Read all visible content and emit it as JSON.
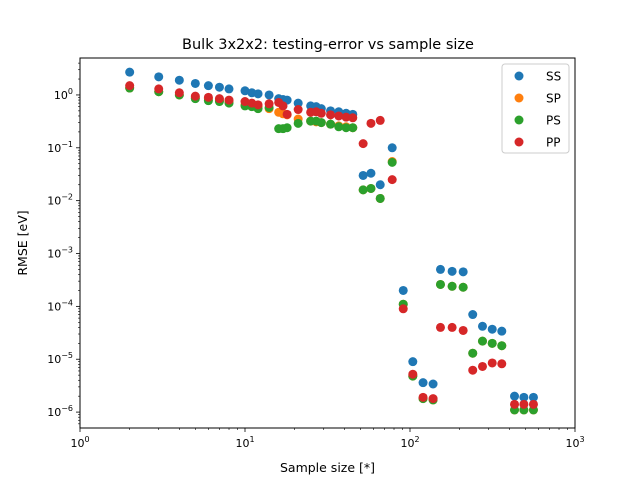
{
  "chart_data": {
    "type": "scatter",
    "title": "Bulk 3x2x2: testing-error vs sample size",
    "xlabel": "Sample size [*]",
    "ylabel": "RMSE [eV]",
    "xscale": "log",
    "yscale": "log",
    "xlim": [
      1,
      1000
    ],
    "ylim": [
      5e-07,
      5
    ],
    "grid": false,
    "legend_position": "top-right",
    "x_ticks": [
      {
        "value": 1,
        "base": "10",
        "exp": "0"
      },
      {
        "value": 10,
        "base": "10",
        "exp": "1"
      },
      {
        "value": 100,
        "base": "10",
        "exp": "2"
      },
      {
        "value": 1000,
        "base": "10",
        "exp": "3"
      }
    ],
    "y_ticks": [
      {
        "value": 1e-06,
        "base": "10",
        "exp": "−6"
      },
      {
        "value": 1e-05,
        "base": "10",
        "exp": "−5"
      },
      {
        "value": 0.0001,
        "base": "10",
        "exp": "−4"
      },
      {
        "value": 0.001,
        "base": "10",
        "exp": "−3"
      },
      {
        "value": 0.01,
        "base": "10",
        "exp": "−2"
      },
      {
        "value": 0.1,
        "base": "10",
        "exp": "−1"
      },
      {
        "value": 1,
        "base": "10",
        "exp": "0"
      }
    ],
    "x": [
      2,
      3,
      4,
      5,
      6,
      7,
      8,
      10,
      11,
      12,
      14,
      16,
      17,
      18,
      21,
      25,
      27,
      29,
      33,
      37,
      41,
      45,
      52,
      58,
      66,
      78,
      91,
      104,
      120,
      138,
      153,
      180,
      210,
      240,
      275,
      315,
      360,
      430,
      490,
      560
    ],
    "series": [
      {
        "name": "SS",
        "color": "#1f77b4",
        "values": [
          2.7,
          2.2,
          1.9,
          1.65,
          1.5,
          1.4,
          1.3,
          1.2,
          1.1,
          1.05,
          1.0,
          0.85,
          0.82,
          0.8,
          0.7,
          0.62,
          0.6,
          0.55,
          0.5,
          0.48,
          0.45,
          0.43,
          0.03,
          0.033,
          0.02,
          0.1,
          0.0002,
          9e-06,
          3.6e-06,
          3.4e-06,
          0.0005,
          0.00046,
          0.00045,
          7e-05,
          4.2e-05,
          3.7e-05,
          3.4e-05,
          2e-06,
          1.9e-06,
          1.9e-06
        ]
      },
      {
        "name": "SP",
        "color": "#ff7f0e",
        "values": [
          1.35,
          1.15,
          1.0,
          0.9,
          0.85,
          0.8,
          0.75,
          0.65,
          0.62,
          0.6,
          0.55,
          0.47,
          0.44,
          0.42,
          0.35,
          0.32,
          0.31,
          0.3,
          0.28,
          0.26,
          0.25,
          0.24,
          0.016,
          0.017,
          0.011,
          0.055,
          0.00011,
          4.8e-06,
          1.8e-06,
          1.7e-06,
          0.00026,
          0.00024,
          0.00023,
          1.3e-05,
          2.2e-05,
          2e-05,
          1.8e-05,
          1.1e-06,
          1.1e-06,
          1.1e-06
        ]
      },
      {
        "name": "PS",
        "color": "#2ca02c",
        "values": [
          1.35,
          1.15,
          1.0,
          0.85,
          0.78,
          0.75,
          0.7,
          0.62,
          0.6,
          0.55,
          0.58,
          0.23,
          0.23,
          0.24,
          0.29,
          0.32,
          0.32,
          0.3,
          0.28,
          0.25,
          0.24,
          0.24,
          0.016,
          0.017,
          0.011,
          0.053,
          0.00011,
          4.8e-06,
          1.8e-06,
          1.7e-06,
          0.00026,
          0.00024,
          0.00023,
          1.3e-05,
          2.2e-05,
          2e-05,
          1.8e-05,
          1.1e-06,
          1.1e-06,
          1.1e-06
        ]
      },
      {
        "name": "PP",
        "color": "#d62728",
        "values": [
          1.5,
          1.3,
          1.1,
          0.95,
          0.9,
          0.85,
          0.8,
          0.75,
          0.7,
          0.65,
          0.68,
          0.72,
          0.62,
          0.43,
          0.53,
          0.47,
          0.48,
          0.45,
          0.42,
          0.4,
          0.38,
          0.37,
          0.12,
          0.29,
          0.33,
          0.025,
          9e-05,
          5.2e-06,
          1.9e-06,
          1.8e-06,
          4e-05,
          4e-05,
          3.5e-05,
          6.2e-06,
          7.3e-06,
          8.5e-06,
          8.2e-06,
          1.4e-06,
          1.4e-06,
          1.4e-06
        ]
      }
    ]
  }
}
